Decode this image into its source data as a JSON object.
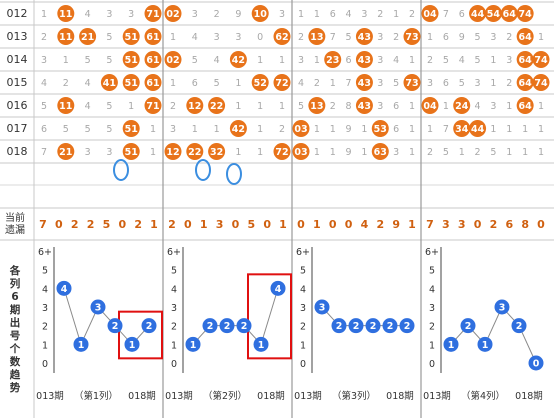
{
  "periods": [
    "012",
    "013",
    "014",
    "015",
    "016",
    "017",
    "018"
  ],
  "grid": [
    [
      [
        "1",
        "11",
        "4",
        "3",
        "3",
        "71"
      ],
      [
        "02",
        "3",
        "2",
        "9",
        "10",
        "3"
      ],
      [
        "1",
        "1",
        "6",
        "4",
        "3",
        "2",
        "1",
        "2"
      ],
      [
        "04",
        "7",
        "6",
        "44",
        "54",
        "64",
        "74"
      ]
    ],
    [
      [
        "2",
        "11",
        "21",
        "5",
        "51",
        "61"
      ],
      [
        "1",
        "4",
        "3",
        "3",
        "0",
        "62"
      ],
      [
        "2",
        "13",
        "7",
        "5",
        "43",
        "3",
        "2",
        "73"
      ],
      [
        "1",
        "6",
        "9",
        "5",
        "3",
        "2",
        "64",
        "1"
      ]
    ],
    [
      [
        "3",
        "1",
        "5",
        "5",
        "51",
        "61"
      ],
      [
        "02",
        "5",
        "4",
        "42",
        "1",
        "1"
      ],
      [
        "3",
        "1",
        "23",
        "6",
        "43",
        "3",
        "4",
        "1"
      ],
      [
        "2",
        "5",
        "4",
        "5",
        "1",
        "3",
        "64",
        "74"
      ]
    ],
    [
      [
        "4",
        "2",
        "4",
        "41",
        "51",
        "61"
      ],
      [
        "1",
        "6",
        "5",
        "1",
        "52",
        "72"
      ],
      [
        "4",
        "2",
        "1",
        "7",
        "43",
        "3",
        "5",
        "73"
      ],
      [
        "3",
        "6",
        "5",
        "3",
        "1",
        "2",
        "64",
        "74"
      ]
    ],
    [
      [
        "5",
        "11",
        "4",
        "5",
        "1",
        "71"
      ],
      [
        "2",
        "12",
        "22",
        "1",
        "1",
        "1"
      ],
      [
        "5",
        "13",
        "2",
        "8",
        "43",
        "3",
        "6",
        "1"
      ],
      [
        "04",
        "1",
        "24",
        "4",
        "3",
        "1",
        "64",
        "1"
      ]
    ],
    [
      [
        "6",
        "5",
        "5",
        "5",
        "51",
        "1"
      ],
      [
        "3",
        "1",
        "1",
        "42",
        "1",
        "2"
      ],
      [
        "03",
        "1",
        "1",
        "9",
        "1",
        "53",
        "6",
        "1"
      ],
      [
        "1",
        "7",
        "34",
        "44",
        "1",
        "1",
        "1",
        "1"
      ]
    ],
    [
      [
        "7",
        "21",
        "3",
        "3",
        "51",
        "1"
      ],
      [
        "12",
        "22",
        "32",
        "1",
        "1",
        "72"
      ],
      [
        "03",
        "1",
        "1",
        "9",
        "1",
        "63",
        "3",
        "1"
      ],
      [
        "2",
        "5",
        "1",
        "2",
        "5",
        "1",
        "1",
        "1"
      ]
    ]
  ],
  "omission": {
    "label_line1": "当前",
    "label_line2": "遗漏",
    "values": [
      [
        "7",
        "0",
        "2",
        "2",
        "5",
        "0",
        "2",
        "1"
      ],
      [
        "2",
        "0",
        "1",
        "3",
        "0",
        "5",
        "0",
        "1"
      ],
      [
        "0",
        "1",
        "0",
        "0",
        "4",
        "2",
        "9",
        "1"
      ],
      [
        "7",
        "3",
        "3",
        "0",
        "2",
        "6",
        "8",
        "0"
      ]
    ]
  },
  "trend_label": [
    "各",
    "列",
    "6",
    "期",
    "出",
    "号",
    "个",
    "数",
    "趋",
    "势"
  ],
  "chart_data": [
    {
      "type": "line",
      "title": "",
      "x_left": "013期",
      "x_mid": "（第1列）",
      "x_right": "018期",
      "ylim": [
        0,
        6
      ],
      "yticks": [
        "0",
        "1",
        "2",
        "3",
        "4",
        "5",
        "6+"
      ],
      "values": [
        4,
        1,
        3,
        2,
        1,
        2
      ],
      "highlight": [
        4,
        5
      ]
    },
    {
      "type": "line",
      "title": "",
      "x_left": "013期",
      "x_mid": "（第2列）",
      "x_right": "018期",
      "ylim": [
        0,
        6
      ],
      "yticks": [
        "0",
        "1",
        "2",
        "3",
        "4",
        "5",
        "6+"
      ],
      "values": [
        1,
        2,
        2,
        2,
        1,
        4
      ],
      "highlight": [
        4,
        5
      ]
    },
    {
      "type": "line",
      "title": "",
      "x_left": "013期",
      "x_mid": "（第3列）",
      "x_right": "018期",
      "ylim": [
        0,
        6
      ],
      "yticks": [
        "0",
        "1",
        "2",
        "3",
        "4",
        "5",
        "6+"
      ],
      "values": [
        3,
        2,
        2,
        2,
        2,
        2
      ],
      "highlight": []
    },
    {
      "type": "line",
      "title": "",
      "x_left": "013期",
      "x_mid": "（第4列）",
      "x_right": "018期",
      "ylim": [
        0,
        6
      ],
      "yticks": [
        "0",
        "1",
        "2",
        "3",
        "4",
        "5",
        "6+"
      ],
      "values": [
        1,
        2,
        1,
        3,
        2,
        0
      ],
      "highlight": []
    }
  ],
  "colors": {
    "ball": "#e8731a",
    "trend_ball": "#2f6fdf",
    "highlight": "#e01010",
    "ring": "#3b8ee0",
    "omission": "#d06010"
  }
}
